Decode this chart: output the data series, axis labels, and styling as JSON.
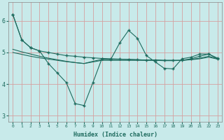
{
  "x": [
    0,
    1,
    2,
    3,
    4,
    5,
    6,
    7,
    8,
    9,
    10,
    11,
    12,
    13,
    14,
    15,
    16,
    17,
    18,
    19,
    20,
    21,
    22,
    23
  ],
  "line1": [
    6.2,
    5.4,
    5.15,
    5.05,
    5.0,
    4.95,
    4.9,
    4.88,
    4.85,
    4.83,
    4.81,
    4.8,
    4.79,
    4.78,
    4.77,
    4.76,
    4.76,
    4.75,
    4.75,
    4.75,
    4.8,
    4.88,
    4.95,
    4.8
  ],
  "line2": [
    6.2,
    5.4,
    5.15,
    5.05,
    4.65,
    4.35,
    4.05,
    3.38,
    3.32,
    4.05,
    4.8,
    4.78,
    5.3,
    5.7,
    5.45,
    4.9,
    4.7,
    4.5,
    4.48,
    4.8,
    4.85,
    4.95,
    4.95,
    4.82
  ],
  "line3": [
    5.1,
    5.02,
    4.95,
    4.88,
    4.82,
    4.77,
    4.72,
    4.68,
    4.65,
    4.72,
    4.78,
    4.78,
    4.78,
    4.78,
    4.77,
    4.76,
    4.76,
    4.75,
    4.75,
    4.75,
    4.78,
    4.82,
    4.88,
    4.8
  ],
  "line4": [
    5.0,
    4.94,
    4.88,
    4.83,
    4.79,
    4.75,
    4.71,
    4.68,
    4.65,
    4.7,
    4.75,
    4.75,
    4.75,
    4.75,
    4.75,
    4.75,
    4.75,
    4.74,
    4.74,
    4.75,
    4.77,
    4.8,
    4.85,
    4.79
  ],
  "line_color": "#1e6b5e",
  "bg_color": "#c8eaea",
  "grid_color": "#d4a0a0",
  "xlabel": "Humidex (Indice chaleur)",
  "ylim": [
    2.8,
    6.6
  ],
  "yticks": [
    3,
    4,
    5,
    6
  ],
  "xtick_labels": [
    "0",
    "1",
    "2",
    "3",
    "4",
    "5",
    "6",
    "7",
    "8",
    "9",
    "10",
    "11",
    "12",
    "13",
    "14",
    "15",
    "16",
    "17",
    "18",
    "19",
    "20",
    "21",
    "22",
    "23"
  ]
}
